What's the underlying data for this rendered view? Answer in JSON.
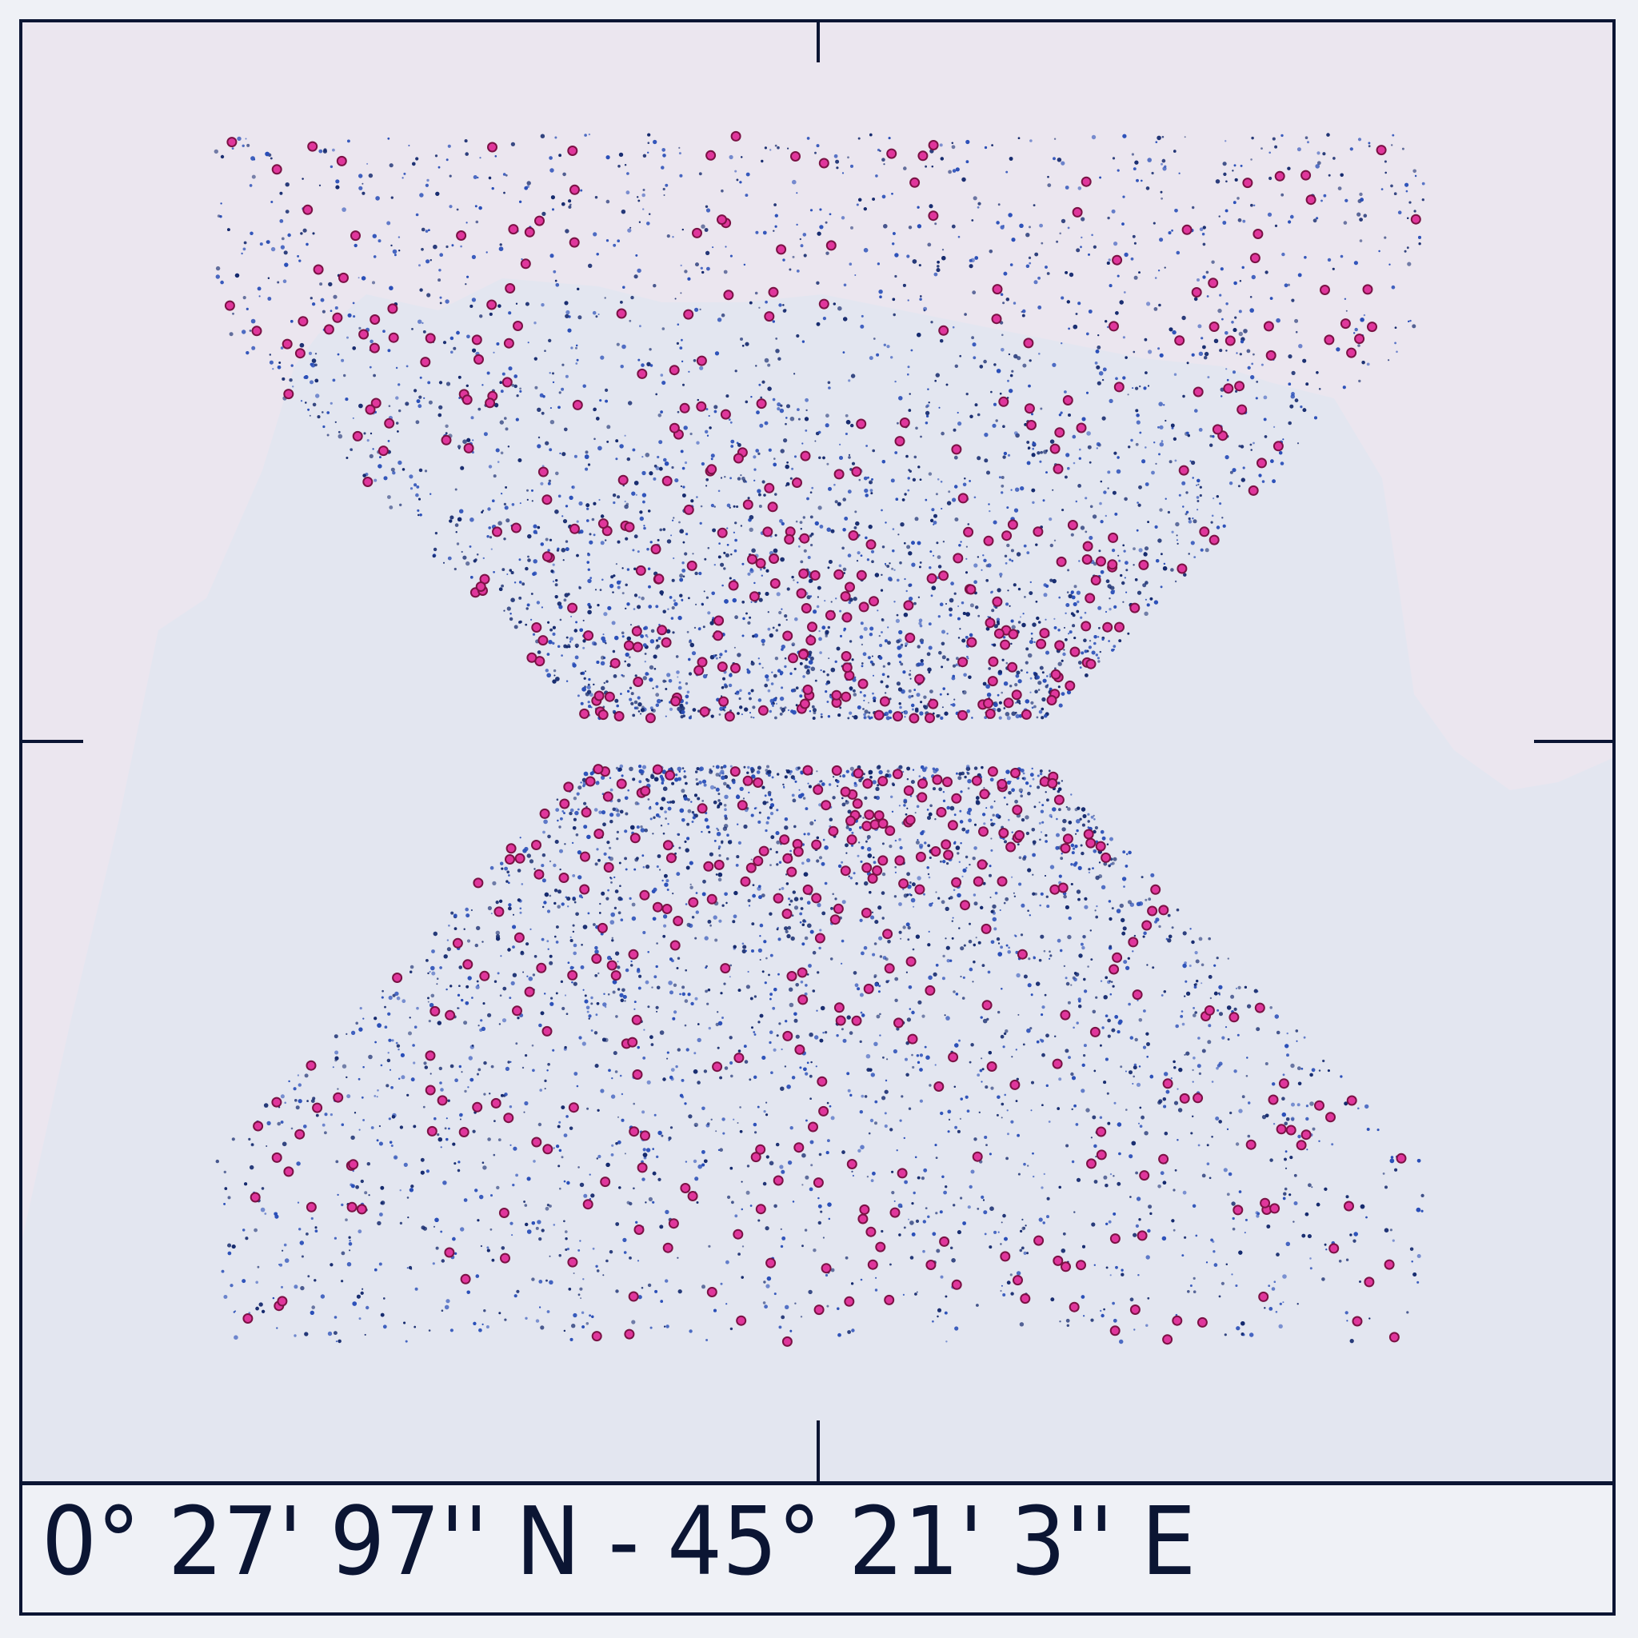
{
  "caption": {
    "coordinates": "0° 27' 97'' N - 45° 21' 3'' E"
  },
  "colors": {
    "sea": "#ebe6ef",
    "land": "#e3e6f0",
    "frame": "#0b1533",
    "point_dark": "#152a6e",
    "point_blue": "#2a4fb8",
    "marker_fill": "#e0369c",
    "marker_stroke": "#7a1244"
  }
}
